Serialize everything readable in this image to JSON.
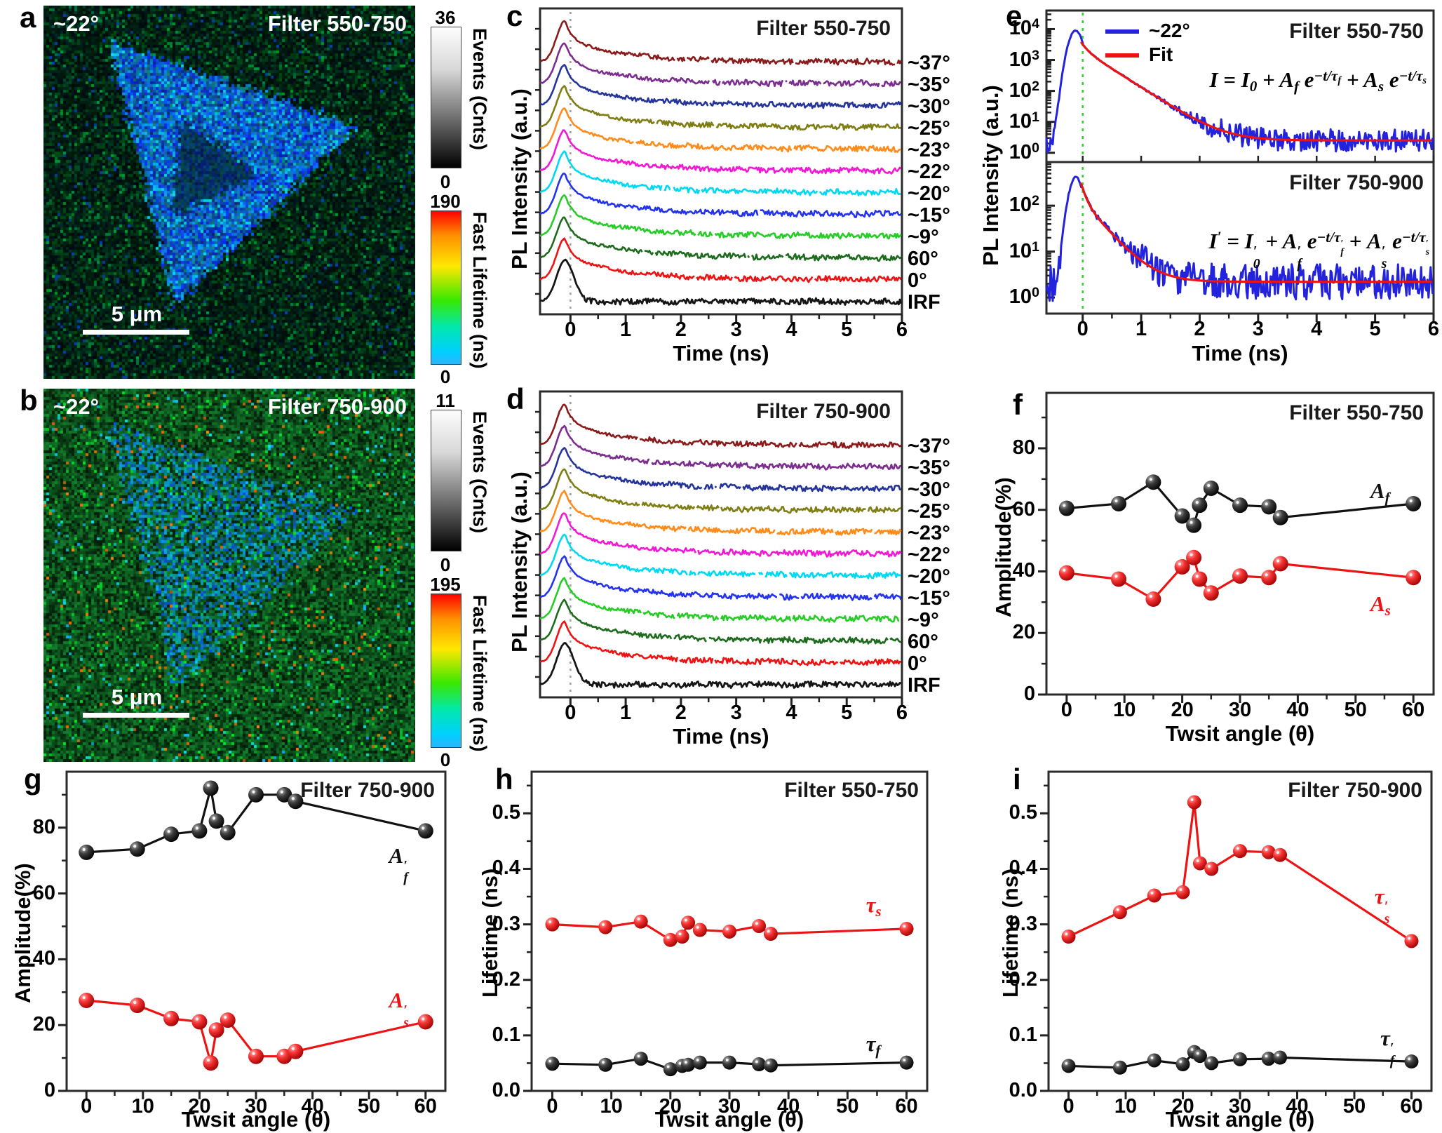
{
  "figure": {
    "panels": {
      "a": {
        "letter": "a",
        "angle": "~22°",
        "title": "Filter 550-750",
        "scalebar": "5 μm",
        "events_bar": {
          "label": "Events (Cnts)",
          "max": "36",
          "min": "0"
        },
        "lifetime_bar": {
          "label": "Fast Lifetime (ns)",
          "max": "190",
          "min": "0"
        }
      },
      "b": {
        "letter": "b",
        "angle": "~22°",
        "title": "Filter 750-900",
        "scalebar": "5 μm",
        "events_bar": {
          "label": "Events (Cnts)",
          "max": "11",
          "min": "0"
        },
        "lifetime_bar": {
          "label": "Fast Lifetime (ns)",
          "max": "195",
          "min": "0"
        }
      },
      "c": {
        "letter": "c",
        "title": "Filter 550-750",
        "xlabel": "Time (ns)",
        "ylabel": "PL Intensity (a.u.)"
      },
      "d": {
        "letter": "d",
        "title": "Filter 750-900",
        "xlabel": "Time (ns)",
        "ylabel": "PL Intensity (a.u.)"
      },
      "e": {
        "letter": "e",
        "title_top": "Filter 550-750",
        "title_bottom": "Filter 750-900",
        "xlabel": "Time (ns)",
        "ylabel": "PL Intensity (a.u.)",
        "legend": [
          {
            "label": "~22°",
            "color": "#2323dd"
          },
          {
            "label": "Fit",
            "color": "#ee1313"
          }
        ],
        "formula_top": "I = I_0 + A_f e^{-t/τ_f} + A_s e^{-t/τ_s}",
        "formula_bottom": "I' = I'_0 + A'_f e^{-t/τ'_f} + A'_s e^{-t/τ'_s}"
      },
      "f": {
        "letter": "f",
        "title": "Filter 550-750",
        "xlabel": "Twsit angle (θ)",
        "ylabel": "Amplitude(%)"
      },
      "g": {
        "letter": "g",
        "title": "Filter 750-900",
        "xlabel": "Twsit angle (θ)",
        "ylabel": "Amplitude(%)"
      },
      "h": {
        "letter": "h",
        "title": "Filter 550-750",
        "xlabel": "Twsit angle (θ)",
        "ylabel": "Lifetime (ns)"
      },
      "i": {
        "letter": "i",
        "title": "Filter 750-900",
        "xlabel": "Twsit angle (θ)",
        "ylabel": "Lifetime (ns)"
      }
    }
  },
  "chart_data": [
    {
      "id": "c",
      "type": "line",
      "title": "Filter 550-750",
      "xlabel": "Time (ns)",
      "ylabel": "PL Intensity (a.u.)",
      "xlim": [
        -0.55,
        6
      ],
      "xticks": [
        0,
        1,
        2,
        3,
        4,
        5,
        6
      ],
      "grid": false,
      "note": "vertically stacked normalized PL decay traces with dotted zero-time marker",
      "curves": [
        {
          "label": "~37°",
          "color": "#8B1A1A"
        },
        {
          "label": "~35°",
          "color": "#7B2E8E"
        },
        {
          "label": "~30°",
          "color": "#24349B"
        },
        {
          "label": "~25°",
          "color": "#7E7E14"
        },
        {
          "label": "~23°",
          "color": "#FF8C1A"
        },
        {
          "label": "~22°",
          "color": "#F318D6"
        },
        {
          "label": "~20°",
          "color": "#00D9F2"
        },
        {
          "label": "~15°",
          "color": "#2433EE"
        },
        {
          "label": "~9°",
          "color": "#27CC27"
        },
        {
          "label": "60°",
          "color": "#1D6B1D"
        },
        {
          "label": "0°",
          "color": "#EE1313"
        },
        {
          "label": "IRF",
          "color": "#151515"
        }
      ]
    },
    {
      "id": "d",
      "type": "line",
      "title": "Filter 750-900",
      "xlabel": "Time (ns)",
      "ylabel": "PL Intensity (a.u.)",
      "xlim": [
        -0.55,
        6
      ],
      "xticks": [
        0,
        1,
        2,
        3,
        4,
        5,
        6
      ],
      "grid": false,
      "note": "vertically stacked normalized PL decay traces with dotted zero-time marker",
      "curves": [
        {
          "label": "~37°",
          "color": "#8B1A1A"
        },
        {
          "label": "~35°",
          "color": "#7B2E8E"
        },
        {
          "label": "~30°",
          "color": "#24349B"
        },
        {
          "label": "~25°",
          "color": "#7E7E14"
        },
        {
          "label": "~23°",
          "color": "#FF8C1A"
        },
        {
          "label": "~22°",
          "color": "#F318D6"
        },
        {
          "label": "~20°",
          "color": "#00D9F2"
        },
        {
          "label": "~15°",
          "color": "#2433EE"
        },
        {
          "label": "~9°",
          "color": "#27CC27"
        },
        {
          "label": "60°",
          "color": "#1D6B1D"
        },
        {
          "label": "0°",
          "color": "#EE1313"
        },
        {
          "label": "IRF",
          "color": "#151515"
        }
      ]
    },
    {
      "id": "e",
      "type": "line",
      "xlabel": "Time (ns)",
      "xticks": [
        0,
        1,
        2,
        3,
        4,
        5,
        6
      ],
      "xlim": [
        -0.62,
        6
      ],
      "legend": [
        "~22°",
        "Fit"
      ],
      "subplots": [
        {
          "title": "Filter 550-750",
          "yscale": "log",
          "yticks": [
            "10^0",
            "10^1",
            "10^2",
            "10^3",
            "10^4"
          ],
          "peak_counts": 9000,
          "baseline_counts": 2.5,
          "series": [
            "~22° data",
            "biexponential fit"
          ]
        },
        {
          "title": "Filter 750-900",
          "yscale": "log",
          "yticks": [
            "10^0",
            "10^1",
            "10^2"
          ],
          "peak_counts": 420,
          "baseline_counts": 2.2,
          "series": [
            "~22° data",
            "biexponential fit"
          ]
        }
      ]
    },
    {
      "id": "f",
      "type": "scatter",
      "title": "Filter 550-750",
      "xlabel": "Twsit angle (θ)",
      "ylabel": "Amplitude(%)",
      "x": [
        0,
        9,
        15,
        20,
        22,
        23,
        25,
        30,
        35,
        37,
        60
      ],
      "xticks": [
        0,
        10,
        20,
        30,
        40,
        50,
        60
      ],
      "yticks": [
        0,
        20,
        40,
        60,
        80
      ],
      "ylim": [
        0,
        98
      ],
      "series": [
        {
          "name": "A_f",
          "color": "#111111",
          "values": [
            60.5,
            62,
            69,
            58,
            55,
            61.5,
            67,
            61.5,
            61,
            57.5,
            62
          ],
          "label_xy": [
            55,
            66
          ]
        },
        {
          "name": "A_s",
          "color": "#EE1313",
          "values": [
            39.5,
            37.5,
            31,
            41.5,
            44.5,
            37.5,
            33,
            38.5,
            38,
            42.5,
            38
          ],
          "label_xy": [
            55,
            29.5
          ]
        }
      ]
    },
    {
      "id": "g",
      "type": "scatter",
      "title": "Filter 750-900",
      "xlabel": "Twsit angle (θ)",
      "ylabel": "Amplitude(%)",
      "x": [
        0,
        9,
        15,
        20,
        22,
        23,
        25,
        30,
        35,
        37,
        60
      ],
      "xticks": [
        0,
        10,
        20,
        30,
        40,
        50,
        60
      ],
      "yticks": [
        0,
        20,
        40,
        60,
        80
      ],
      "ylim": [
        0,
        97
      ],
      "series": [
        {
          "name": "A'_f",
          "color": "#111111",
          "values": [
            72.5,
            73.5,
            78,
            79,
            92,
            82,
            78.5,
            90,
            90,
            88,
            79
          ],
          "label_xy": [
            56,
            71.5
          ]
        },
        {
          "name": "A'_s",
          "color": "#EE1313",
          "values": [
            27.5,
            26,
            22,
            21,
            8.5,
            18.5,
            21.5,
            10.5,
            10.5,
            12,
            21
          ],
          "label_xy": [
            56,
            27.5
          ]
        }
      ]
    },
    {
      "id": "h",
      "type": "scatter",
      "title": "Filter 550-750",
      "xlabel": "Twsit angle (θ)",
      "ylabel": "Lifetime (ns)",
      "x": [
        0,
        9,
        15,
        20,
        22,
        23,
        25,
        30,
        35,
        37,
        60
      ],
      "xticks": [
        0,
        10,
        20,
        30,
        40,
        50,
        60
      ],
      "yticks": [
        0.0,
        0.1,
        0.2,
        0.3,
        0.4,
        0.5
      ],
      "ylim": [
        0,
        0.575
      ],
      "series": [
        {
          "name": "τ_s",
          "color": "#EE1313",
          "values": [
            0.3,
            0.295,
            0.305,
            0.272,
            0.278,
            0.303,
            0.29,
            0.287,
            0.297,
            0.283,
            0.292
          ],
          "label_xy": [
            55.5,
            0.335
          ]
        },
        {
          "name": "τ_f",
          "color": "#111111",
          "values": [
            0.049,
            0.047,
            0.058,
            0.039,
            0.045,
            0.047,
            0.051,
            0.051,
            0.048,
            0.046,
            0.051
          ],
          "label_xy": [
            55.5,
            0.085
          ]
        }
      ]
    },
    {
      "id": "i",
      "type": "scatter",
      "title": "Filter 750-900",
      "xlabel": "Twsit angle (θ)",
      "ylabel": "Lifetime (ns)",
      "x": [
        0,
        9,
        15,
        20,
        22,
        23,
        25,
        30,
        35,
        37,
        60
      ],
      "xticks": [
        0,
        10,
        20,
        30,
        40,
        50,
        60
      ],
      "yticks": [
        0.0,
        0.1,
        0.2,
        0.3,
        0.4,
        0.5
      ],
      "ylim": [
        0,
        0.575
      ],
      "series": [
        {
          "name": "τ'_s",
          "color": "#EE1313",
          "values": [
            0.278,
            0.322,
            0.352,
            0.358,
            0.52,
            0.41,
            0.4,
            0.432,
            0.43,
            0.425,
            0.27
          ],
          "label_xy": [
            56,
            0.35
          ]
        },
        {
          "name": "τ'_f",
          "color": "#111111",
          "values": [
            0.045,
            0.042,
            0.055,
            0.048,
            0.07,
            0.063,
            0.05,
            0.057,
            0.058,
            0.06,
            0.053
          ],
          "label_xy": [
            57,
            0.095
          ]
        }
      ]
    }
  ]
}
